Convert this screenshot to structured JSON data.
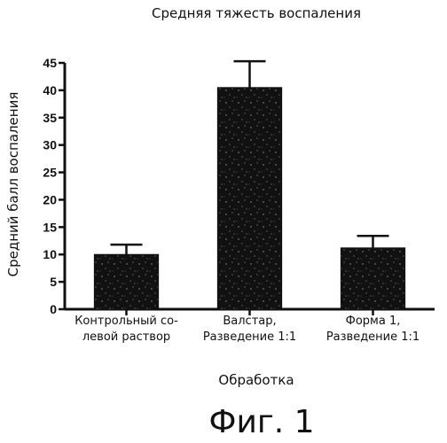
{
  "chart_data": {
    "type": "bar",
    "title": "Средняя тяжесть воспаления",
    "ylabel": "Средний балл воспаления",
    "xlabel": "Обработка",
    "ylim": [
      0,
      45
    ],
    "yticks": [
      0,
      5,
      10,
      15,
      20,
      25,
      30,
      35,
      40,
      45
    ],
    "categories": [
      [
        "Контрольный со-",
        "левой раствор"
      ],
      [
        "Валстар,",
        "Разведение 1:1"
      ],
      [
        "Форма 1,",
        "Разведение 1:1"
      ]
    ],
    "values": [
      10,
      40.5,
      11.2
    ],
    "errors": [
      1.8,
      4.8,
      2.2
    ],
    "bar_color": "#111111",
    "grid": false,
    "legend": "none"
  },
  "caption": "Фиг. 1"
}
